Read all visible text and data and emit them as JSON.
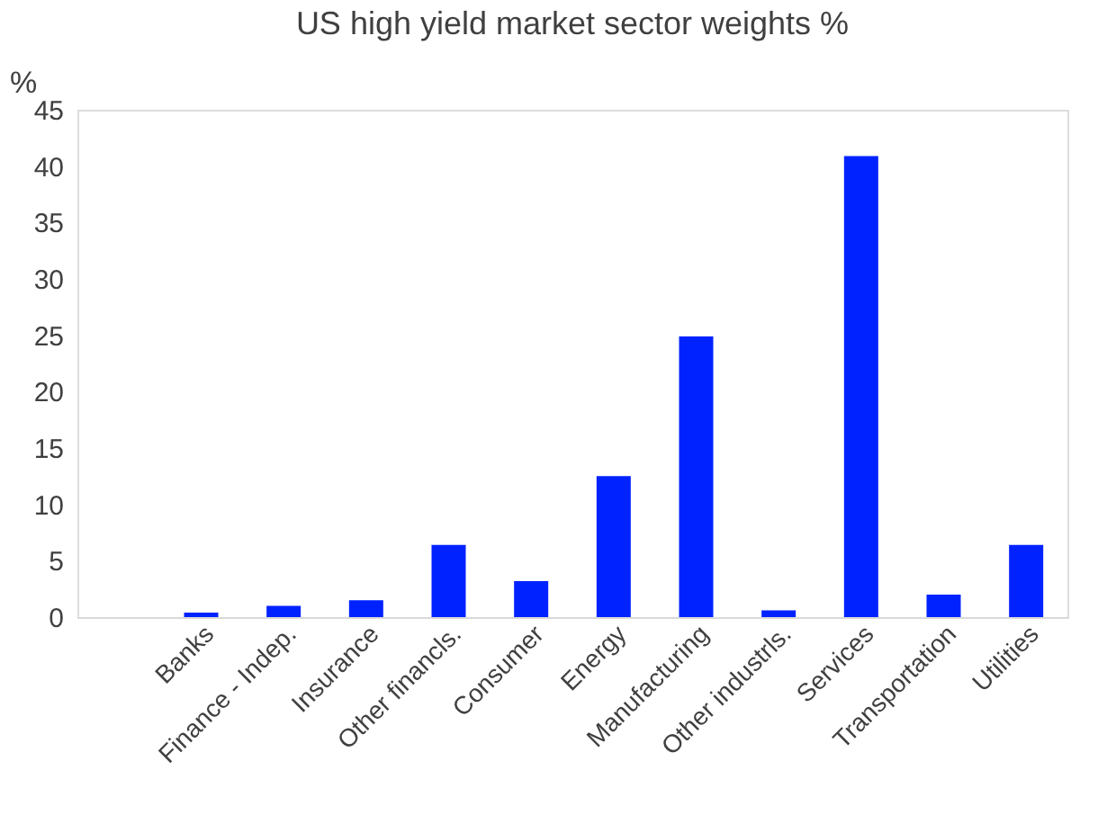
{
  "chart_data": {
    "type": "bar",
    "title": "US high yield market sector weights %",
    "ylabel": "%",
    "categories": [
      null,
      "Banks",
      "Finance - Indep.",
      "Insurance",
      "Other financls.",
      "Consumer",
      "Energy",
      "Manufacturing",
      "Other industrls.",
      "Services",
      "Transportation",
      "Utilities"
    ],
    "values": [
      null,
      0.4,
      1.0,
      1.5,
      6.4,
      3.2,
      12.5,
      24.9,
      0.6,
      40.9,
      2.0,
      6.4
    ],
    "color": "#0022ff",
    "ylim": [
      0,
      45
    ],
    "yticks": [
      0,
      5,
      10,
      15,
      20,
      25,
      30,
      35,
      40,
      45
    ],
    "grid": false
  }
}
